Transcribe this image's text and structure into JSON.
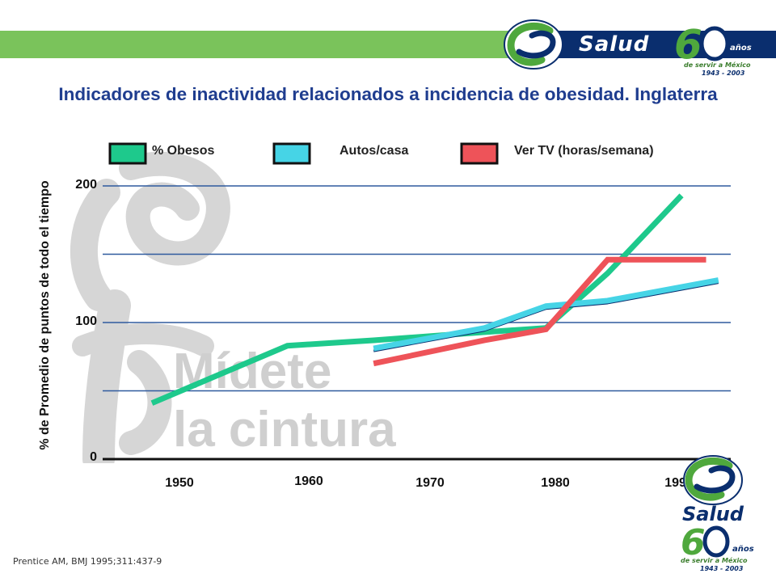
{
  "brand": {
    "name": "Salud",
    "sixty": "60",
    "anos": "años",
    "subtitle": "de servir a México",
    "years": "1943 - 2003"
  },
  "watermark": {
    "line1": "Mídete",
    "line2": "la cintura"
  },
  "source": "Prentice AM, BMJ 1995;311:437-9",
  "colors": {
    "obesos": "#1ec98c",
    "autos": "#46d4e6",
    "tv": "#ee5359",
    "grid": "#2f5a9e",
    "title": "#1f3d8f",
    "green_bar": "#7ac35b",
    "navy": "#0a2e6e"
  },
  "chart_data": {
    "type": "line",
    "title": "Indicadores de inactividad relacionados a  incidencia de obesidad. Inglaterra",
    "xlabel": "",
    "ylabel": "% de Promedio de puntos de todo el tiempo",
    "ylim": [
      0,
      200
    ],
    "xlim": [
      1945,
      1996
    ],
    "yticks": [
      0,
      100,
      200
    ],
    "ytick_labels": [
      "0",
      "100",
      "200"
    ],
    "xticks": [
      1950,
      1960,
      1970,
      1980,
      1990
    ],
    "xtick_labels": [
      "1950",
      "1960",
      "1970",
      "1980",
      "1990"
    ],
    "grid": true,
    "legend_position": "top",
    "series": [
      {
        "name": "% Obesos",
        "key": "obesos",
        "x": [
          1949,
          1960,
          1967,
          1976,
          1981,
          1986,
          1992
        ],
        "y": [
          41,
          83,
          87,
          93,
          96,
          136,
          193
        ]
      },
      {
        "name": "Autos/casa",
        "key": "autos",
        "x": [
          1967,
          1976,
          1981,
          1986,
          1995
        ],
        "y": [
          81,
          96,
          112,
          116,
          131
        ]
      },
      {
        "name": "Ver TV  (horas/semana)",
        "key": "tv",
        "x": [
          1967,
          1976,
          1981,
          1986,
          1994
        ],
        "y": [
          70,
          87,
          95,
          146,
          146
        ]
      }
    ]
  }
}
